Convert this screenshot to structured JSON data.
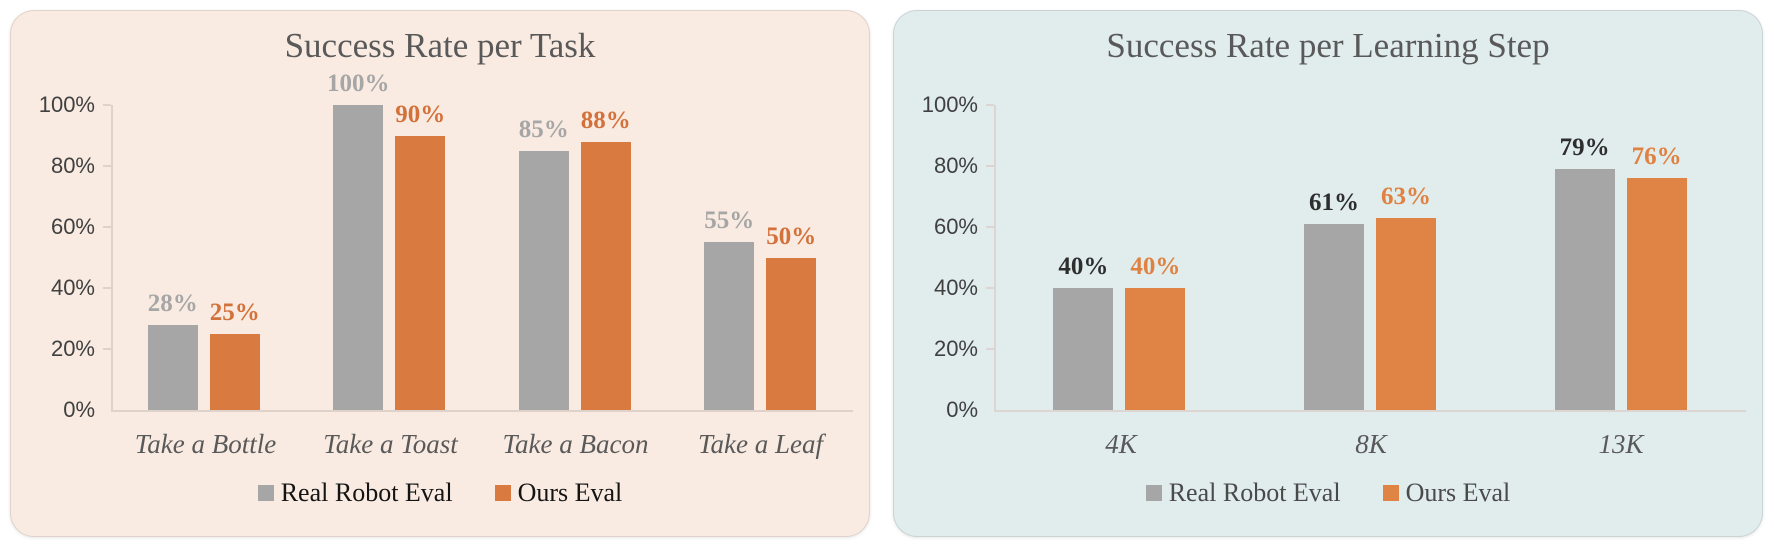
{
  "chart_data": [
    {
      "type": "bar",
      "title": "Success Rate per Task",
      "categories": [
        "Take a Bottle",
        "Take a Toast",
        "Take a Bacon",
        "Take a Leaf"
      ],
      "series": [
        {
          "name": "Real Robot Eval",
          "values": [
            28,
            100,
            85,
            55
          ],
          "color": "#a6a6a6",
          "label_color": "#a6a6a6"
        },
        {
          "name": "Ours Eval",
          "values": [
            25,
            90,
            88,
            50
          ],
          "color": "#d97b40",
          "label_color": "#d3713a"
        }
      ],
      "yticks": [
        "0%",
        "20%",
        "40%",
        "60%",
        "80%",
        "100%"
      ],
      "ylim": [
        0,
        100
      ],
      "value_suffix": "%",
      "xlabel": "",
      "ylabel": "",
      "grid": false,
      "legend_position": "bottom",
      "panel_background": "#f9ebe2",
      "axis_color": "#ded2ca",
      "legend_text_color": "#141414"
    },
    {
      "type": "bar",
      "title": "Success Rate per Learning Step",
      "categories": [
        "4K",
        "8K",
        "13K"
      ],
      "series": [
        {
          "name": "Real Robot Eval",
          "values": [
            40,
            61,
            79
          ],
          "color": "#a6a6a6",
          "label_color": "#2e2e2e"
        },
        {
          "name": "Ours Eval",
          "values": [
            40,
            63,
            76
          ],
          "color": "#e08446",
          "label_color": "#e08142"
        }
      ],
      "yticks": [
        "0%",
        "20%",
        "40%",
        "60%",
        "80%",
        "100%"
      ],
      "ylim": [
        0,
        100
      ],
      "value_suffix": "%",
      "xlabel": "",
      "ylabel": "",
      "grid": false,
      "legend_position": "bottom",
      "panel_background": "#e0edec",
      "axis_color": "#ddd5d2",
      "legend_text_color": "#4a4a4a"
    }
  ]
}
